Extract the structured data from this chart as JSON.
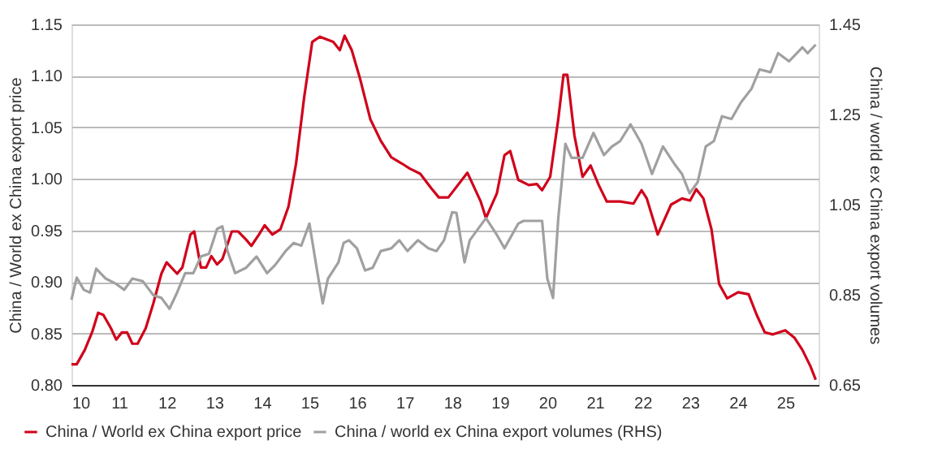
{
  "chart_data": {
    "type": "line",
    "ylabel": "China / World ex China export price",
    "y2label": "China / world ex China export volumes",
    "xlim": [
      10,
      25.7
    ],
    "xticks": [
      10,
      11,
      12,
      13,
      14,
      15,
      16,
      17,
      18,
      19,
      20,
      21,
      22,
      23,
      24,
      25
    ],
    "ylim": [
      0.8,
      1.15
    ],
    "yticks": [
      {
        "value": 0.8,
        "label": "0.80"
      },
      0.85,
      {
        "value": 0.9,
        "label": "0.90"
      },
      0.95,
      {
        "value": 1.0,
        "label": "1.00"
      },
      1.05,
      {
        "value": 1.1,
        "label": "1.10"
      },
      1.15
    ],
    "y2lim": [
      0.65,
      1.45
    ],
    "y2ticks": [
      0.65,
      0.85,
      1.05,
      1.25,
      1.45
    ],
    "grid": "y",
    "legend": "bottom",
    "series": [
      {
        "name": "China / World ex China export price",
        "color": "#d0021b",
        "x": [
          10.0,
          10.11,
          10.28,
          10.44,
          10.56,
          10.67,
          10.83,
          10.94,
          11.06,
          11.17,
          11.28,
          11.39,
          11.56,
          11.72,
          11.89,
          12.0,
          12.22,
          12.33,
          12.5,
          12.58,
          12.72,
          12.83,
          12.94,
          13.06,
          13.17,
          13.37,
          13.5,
          13.67,
          13.78,
          13.94,
          14.06,
          14.22,
          14.39,
          14.56,
          14.72,
          14.89,
          15.06,
          15.22,
          15.33,
          15.5,
          15.64,
          15.74,
          15.89,
          16.06,
          16.28,
          16.5,
          16.72,
          16.94,
          17.11,
          17.33,
          17.56,
          17.72,
          17.92,
          18.32,
          18.6,
          18.71,
          18.94,
          19.1,
          19.22,
          19.39,
          19.61,
          19.78,
          19.89,
          20.06,
          20.23,
          20.34,
          20.42,
          20.57,
          20.74,
          20.91,
          21.08,
          21.25,
          21.53,
          21.81,
          21.98,
          22.09,
          22.32,
          22.6,
          22.83,
          23.0,
          23.13,
          23.28,
          23.45,
          23.61,
          23.78,
          24.01,
          24.23,
          24.4,
          24.57,
          24.74,
          25.0,
          25.19,
          25.36,
          25.53,
          25.64
        ],
        "values": [
          0.82,
          0.82,
          0.834,
          0.852,
          0.87,
          0.868,
          0.855,
          0.844,
          0.851,
          0.851,
          0.84,
          0.84,
          0.855,
          0.879,
          0.908,
          0.919,
          0.908,
          0.914,
          0.946,
          0.949,
          0.914,
          0.914,
          0.925,
          0.917,
          0.922,
          0.949,
          0.949,
          0.941,
          0.935,
          0.946,
          0.955,
          0.946,
          0.951,
          0.973,
          1.015,
          1.079,
          1.133,
          1.138,
          1.136,
          1.133,
          1.125,
          1.139,
          1.125,
          1.098,
          1.058,
          1.037,
          1.021,
          1.015,
          1.01,
          1.005,
          0.991,
          0.982,
          0.982,
          1.006,
          0.978,
          0.962,
          0.986,
          1.023,
          1.027,
          0.999,
          0.994,
          0.995,
          0.989,
          1.002,
          1.058,
          1.101,
          1.101,
          1.042,
          1.002,
          1.013,
          0.994,
          0.978,
          0.978,
          0.976,
          0.989,
          0.981,
          0.946,
          0.975,
          0.981,
          0.979,
          0.99,
          0.981,
          0.951,
          0.898,
          0.884,
          0.89,
          0.888,
          0.868,
          0.851,
          0.849,
          0.853,
          0.846,
          0.834,
          0.818,
          0.805
        ]
      },
      {
        "name": "China / world ex China export volumes (RHS)",
        "color": "#a0a0a0",
        "axis": "y2",
        "x": [
          10.0,
          10.11,
          10.26,
          10.39,
          10.52,
          10.72,
          10.94,
          11.11,
          11.28,
          11.5,
          11.72,
          11.89,
          12.06,
          12.22,
          12.39,
          12.56,
          12.72,
          12.89,
          13.06,
          13.17,
          13.28,
          13.44,
          13.67,
          13.89,
          14.11,
          14.28,
          14.5,
          14.67,
          14.83,
          15.0,
          15.17,
          15.28,
          15.39,
          15.61,
          15.72,
          15.83,
          16.0,
          16.17,
          16.33,
          16.5,
          16.72,
          16.89,
          17.06,
          17.28,
          17.5,
          17.67,
          17.83,
          18.0,
          18.09,
          18.26,
          18.37,
          18.71,
          18.94,
          19.1,
          19.39,
          19.5,
          19.72,
          19.89,
          20.0,
          20.12,
          20.23,
          20.38,
          20.51,
          20.74,
          20.97,
          21.19,
          21.36,
          21.53,
          21.75,
          21.98,
          22.2,
          22.43,
          22.66,
          22.83,
          22.99,
          23.16,
          23.33,
          23.5,
          23.67,
          23.87,
          24.07,
          24.29,
          24.46,
          24.69,
          24.85,
          25.08,
          25.36,
          25.47,
          25.64
        ],
        "values": [
          0.839,
          0.888,
          0.861,
          0.855,
          0.908,
          0.886,
          0.874,
          0.861,
          0.886,
          0.88,
          0.849,
          0.843,
          0.819,
          0.855,
          0.898,
          0.898,
          0.935,
          0.941,
          0.996,
          1.002,
          0.947,
          0.898,
          0.91,
          0.935,
          0.898,
          0.916,
          0.947,
          0.965,
          0.959,
          1.008,
          0.898,
          0.831,
          0.886,
          0.922,
          0.965,
          0.971,
          0.953,
          0.904,
          0.91,
          0.947,
          0.953,
          0.971,
          0.947,
          0.971,
          0.953,
          0.947,
          0.971,
          1.033,
          1.032,
          0.922,
          0.971,
          1.02,
          0.983,
          0.953,
          1.008,
          1.014,
          1.014,
          1.014,
          0.886,
          0.843,
          1.02,
          1.185,
          1.154,
          1.154,
          1.209,
          1.16,
          1.179,
          1.191,
          1.228,
          1.185,
          1.118,
          1.179,
          1.142,
          1.118,
          1.075,
          1.1,
          1.179,
          1.191,
          1.246,
          1.24,
          1.277,
          1.307,
          1.35,
          1.344,
          1.386,
          1.368,
          1.399,
          1.386,
          1.405
        ]
      }
    ]
  }
}
